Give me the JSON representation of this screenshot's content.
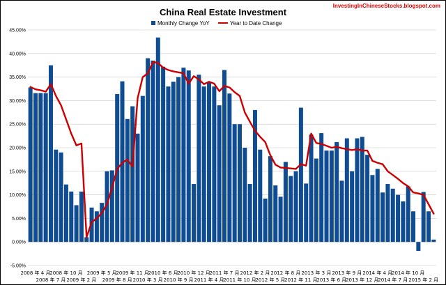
{
  "chart_data": {
    "type": "bar",
    "title": "China Real Estate Investment",
    "watermark": "InvestingInChineseStocks.blogspot.com",
    "xlabel": "",
    "ylabel": "",
    "ylim": [
      -5,
      45
    ],
    "yticks": [
      -5,
      0,
      5,
      10,
      15,
      20,
      25,
      30,
      35,
      40,
      45
    ],
    "ytick_labels": [
      "-5.00%",
      "0.00%",
      "5.00%",
      "10.00%",
      "15.00%",
      "20.00%",
      "25.00%",
      "30.00%",
      "35.00%",
      "40.00%",
      "45.00%"
    ],
    "legend": {
      "placement": "top-center",
      "entries": [
        "Monthly Change YoY",
        "Year to Date Change"
      ]
    },
    "bar_color": "#0f4c92",
    "line_color": "#cc0000",
    "x_labels_upper": [
      {
        "i": 1,
        "label": "2008 年 4 月"
      },
      {
        "i": 7,
        "label": "2008 年 10 月"
      },
      {
        "i": 14,
        "label": "2009 年 5 月"
      },
      {
        "i": 20,
        "label": "2009 年 11 月"
      },
      {
        "i": 26,
        "label": "2010 年 6 月"
      },
      {
        "i": 32,
        "label": "2010 年 12 月"
      },
      {
        "i": 38,
        "label": "2011 年 7 月"
      },
      {
        "i": 44,
        "label": "2012 年 2 月"
      },
      {
        "i": 50,
        "label": "2012 年 8 月"
      },
      {
        "i": 56,
        "label": "2013 年 3 月"
      },
      {
        "i": 62,
        "label": "2013 年 9 月"
      },
      {
        "i": 68,
        "label": "2014 年 4 月"
      },
      {
        "i": 74,
        "label": "2014 年 10 月"
      }
    ],
    "x_labels_lower": [
      {
        "i": 4,
        "label": "2008 年 7 月"
      },
      {
        "i": 10,
        "label": "2009 年 2 月"
      },
      {
        "i": 17,
        "label": "2009 年 8 月"
      },
      {
        "i": 23,
        "label": "2010 年 3 月"
      },
      {
        "i": 29,
        "label": "2010 年 9 月"
      },
      {
        "i": 35,
        "label": "2011 年 4 月"
      },
      {
        "i": 41,
        "label": "2011 年 10 月"
      },
      {
        "i": 47,
        "label": "2012 年 5 月"
      },
      {
        "i": 53,
        "label": "2012 年 11 月"
      },
      {
        "i": 59,
        "label": "2013 年 6 月"
      },
      {
        "i": 65,
        "label": "2013 年 12 月"
      },
      {
        "i": 71,
        "label": "2014 年 7 月"
      },
      {
        "i": 77,
        "label": "2015 年 2 月"
      }
    ],
    "series": [
      {
        "name": "Monthly Change YoY",
        "type": "bar",
        "values": [
          32.8,
          31.6,
          31.6,
          31.6,
          37.5,
          19.6,
          19.0,
          12.2,
          10.7,
          7.8,
          10.7,
          1.0,
          7.3,
          6.5,
          8.3,
          15.0,
          15.2,
          31.4,
          34.1,
          26.1,
          28.8,
          23.0,
          31.0,
          39.0,
          38.5,
          43.4,
          37.2,
          33.0,
          34.0,
          35.0,
          37.0,
          36.4,
          12.3,
          35.5,
          33.0,
          34.0,
          33.0,
          29.0,
          36.5,
          31.5,
          25.0,
          25.0,
          20.0,
          12.3,
          28.0,
          19.6,
          9.2,
          18.2,
          12.0,
          9.6,
          17.0,
          14.0,
          15.0,
          28.5,
          12.4,
          22.8,
          17.7,
          23.1,
          19.4,
          19.4,
          21.2,
          13.0,
          22.0,
          15.0,
          22.0,
          22.3,
          18.5,
          14.2,
          15.5,
          10.5,
          12.3,
          11.3,
          10.0,
          8.6,
          11.8,
          6.5,
          -1.9,
          10.6,
          6.5,
          0.5
        ]
      },
      {
        "name": "Year to Date Change",
        "type": "line",
        "values": [
          32.9,
          32.4,
          32.2,
          31.9,
          33.5,
          31.0,
          29.0,
          26.0,
          23.0,
          20.5,
          20.9,
          1.0,
          4.2,
          5.0,
          6.2,
          8.0,
          11.5,
          15.5,
          16.8,
          17.5,
          16.0,
          30.5,
          35.0,
          35.8,
          38.2,
          38.0,
          37.0,
          36.5,
          36.2,
          36.0,
          35.8,
          33.6,
          35.2,
          34.5,
          33.5,
          34.0,
          33.6,
          32.0,
          33.1,
          32.8,
          31.8,
          31.0,
          27.5,
          25.5,
          23.6,
          22.3,
          21.2,
          18.4,
          16.4,
          15.8,
          15.7,
          15.6,
          15.5,
          16.5,
          16.2,
          23.0,
          21.0,
          20.8,
          20.4,
          20.0,
          20.2,
          19.9,
          19.7,
          19.5,
          19.7,
          19.4,
          19.4,
          17.2,
          16.8,
          16.5,
          15.0,
          14.2,
          13.4,
          12.5,
          11.8,
          10.5,
          10.3,
          10.0,
          8.0,
          6.0
        ]
      }
    ]
  }
}
